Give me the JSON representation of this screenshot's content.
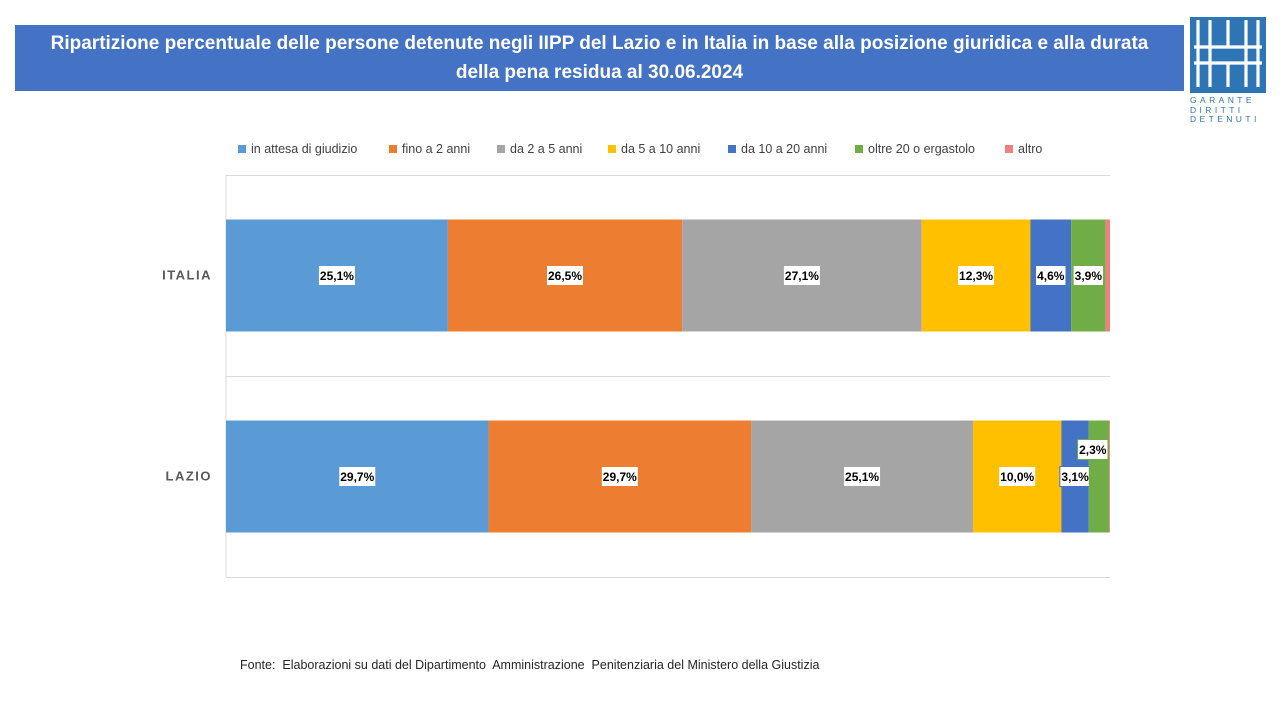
{
  "header": {
    "title": "Ripartizione percentuale delle persone detenute negli IIPP del Lazio e in Italia in base alla posizione giuridica e alla durata della pena residua al 30.06.2024",
    "title_bg": "#4472C4"
  },
  "logo": {
    "lines": [
      "GARANTE",
      "DIRITTI",
      "DETENUTI"
    ],
    "color": "#2E75B6"
  },
  "chart_data": {
    "type": "bar",
    "orientation": "horizontal",
    "stacked": "percent",
    "title": "Ripartizione percentuale delle persone detenute negli IIPP del Lazio e in Italia in base alla posizione giuridica e alla durata della pena residua al 30.06.2024",
    "categories": [
      "ITALIA",
      "LAZIO"
    ],
    "xlim": [
      0,
      100
    ],
    "legend": "top",
    "series": [
      {
        "name": "in attesa di giudizio",
        "color": "#5B9BD5",
        "values": [
          25.1,
          29.7
        ],
        "labels": [
          "25,1%",
          "29,7%"
        ]
      },
      {
        "name": "fino a 2 anni",
        "color": "#ED7D31",
        "values": [
          26.5,
          29.7
        ],
        "labels": [
          "26,5%",
          "29,7%"
        ]
      },
      {
        "name": "da 2 a 5 anni",
        "color": "#A5A5A5",
        "values": [
          27.1,
          25.1
        ],
        "labels": [
          "27,1%",
          "25,1%"
        ]
      },
      {
        "name": "da 5 a 10 anni",
        "color": "#FFC000",
        "values": [
          12.3,
          10.0
        ],
        "labels": [
          "12,3%",
          "10,0%"
        ]
      },
      {
        "name": "da 10 a 20 anni",
        "color": "#4472C4",
        "values": [
          4.6,
          3.1
        ],
        "labels": [
          "4,6%",
          "3,1%"
        ]
      },
      {
        "name": "oltre 20 o ergastolo",
        "color": "#70AD47",
        "values": [
          3.9,
          2.3
        ],
        "labels": [
          "3,9%",
          "2,3%"
        ]
      },
      {
        "name": "altro",
        "color": "#F08080",
        "values": [
          0.5,
          0.1
        ],
        "labels": [
          "",
          ""
        ]
      }
    ]
  },
  "source": "Fonte:  Elaborazioni su dati del Dipartimento  Amministrazione  Penitenziaria del Ministero della Giustizia"
}
